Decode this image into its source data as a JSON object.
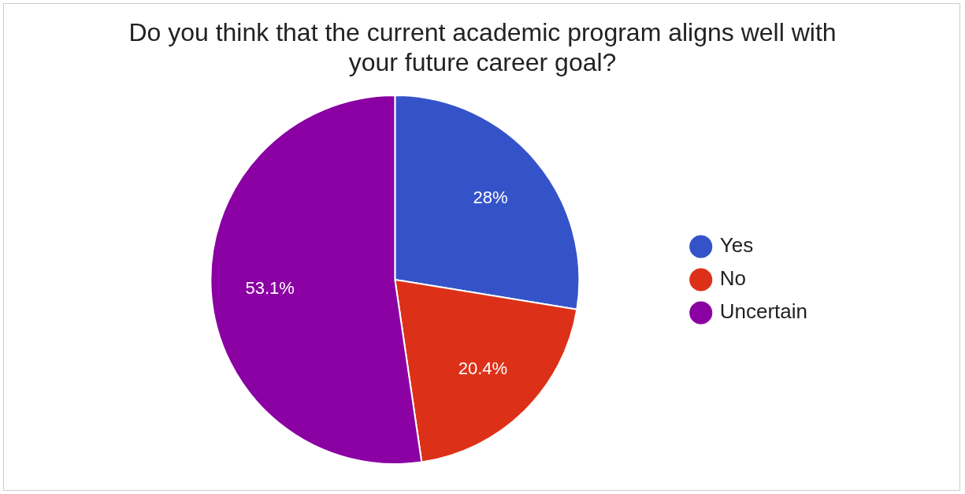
{
  "chart_data": {
    "type": "pie",
    "title": "Do you think that the current academic program aligns well with your future career goal?",
    "categories": [
      "Yes",
      "No",
      "Uncertain"
    ],
    "values": [
      28,
      20.4,
      53.1
    ],
    "colors": [
      "#3553c9",
      "#dc3118",
      "#8a00a3"
    ],
    "value_labels": [
      "28%",
      "20.4%",
      "53.1%"
    ],
    "legend": "right"
  }
}
